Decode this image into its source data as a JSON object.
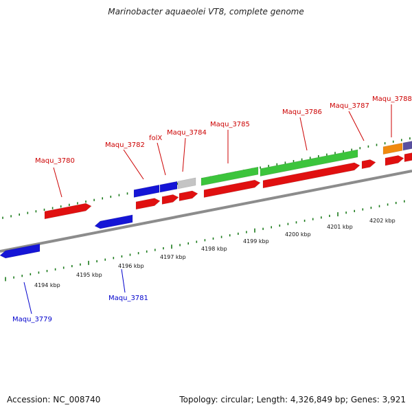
{
  "title": "Marinobacter aquaeolei VT8, complete genome",
  "footer": {
    "accession": "Accession: NC_008740",
    "summary": "Topology: circular; Length: 4,326,849 bp; Genes: 3,921"
  },
  "colors": {
    "backbone": "#8c8c8c",
    "tick": "#1a7a1a",
    "label_forward": "#cc0000",
    "label_reverse": "#0000cc",
    "gene_red": "#e01010",
    "gene_blue": "#1515d6",
    "gene_green": "#3cc43c",
    "gene_grey": "#c4c4c4",
    "gene_orange": "#f08a10",
    "gene_purple": "#5a50a0"
  },
  "kbp_labels": [
    "4194 kbp",
    "4195 kbp",
    "4196 kbp",
    "4197 kbp",
    "4198 kbp",
    "4199 kbp",
    "4200 kbp",
    "4201 kbp",
    "4202 kbp"
  ],
  "gene_labels_forward": [
    "Maqu_3780",
    "Maqu_3782",
    "folX",
    "Maqu_3784",
    "Maqu_3785",
    "Maqu_3786",
    "Maqu_3787",
    "Maqu_3788"
  ],
  "gene_labels_reverse": [
    "Maqu_3779",
    "Maqu_3781"
  ]
}
